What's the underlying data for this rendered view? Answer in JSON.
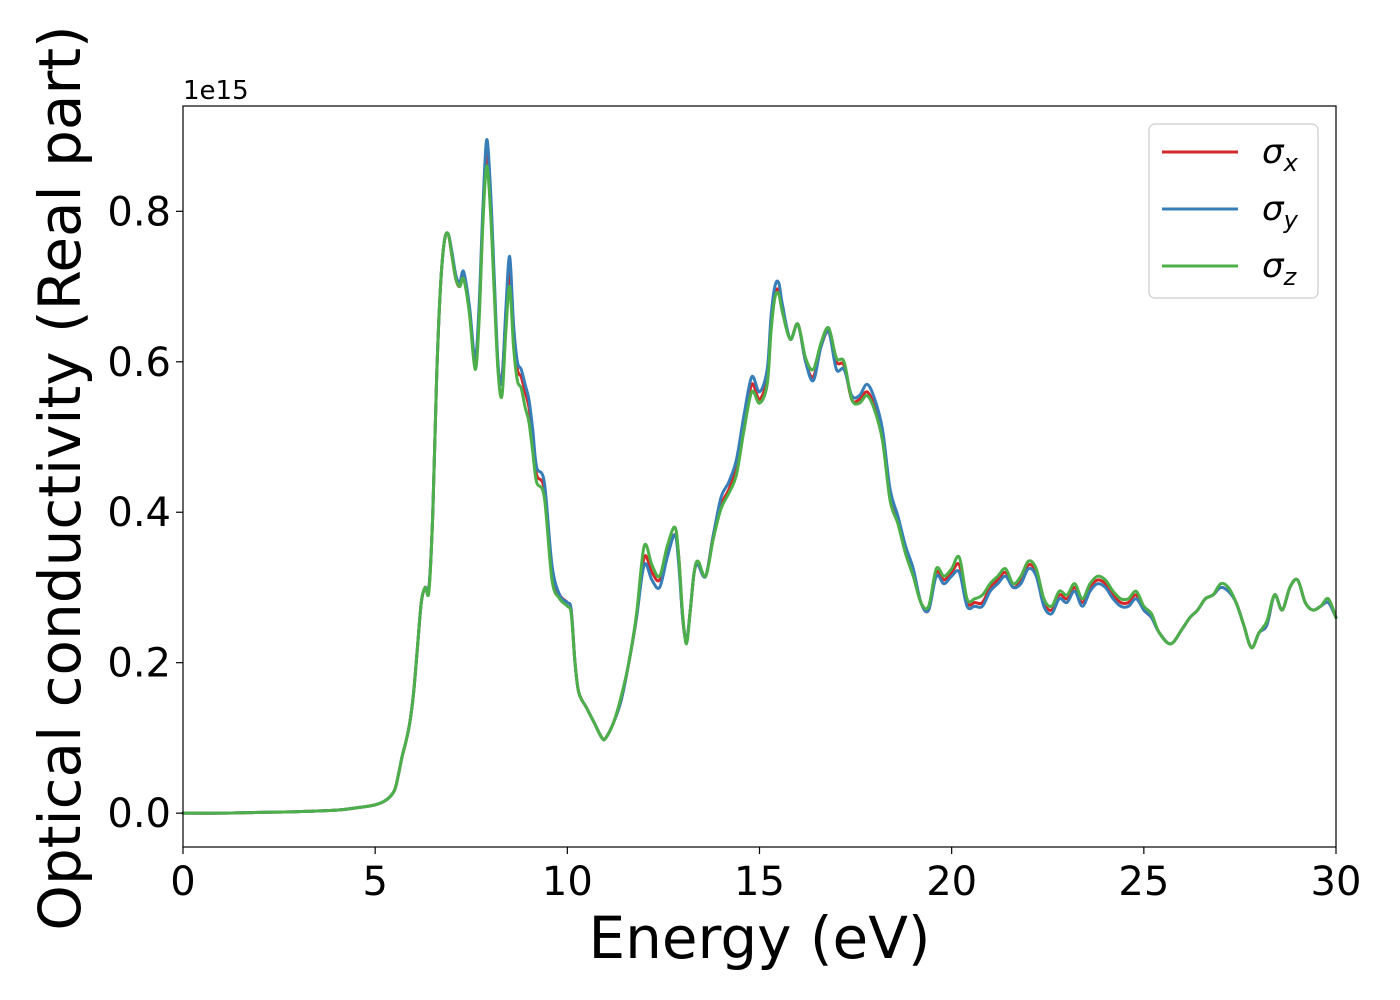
{
  "chart_data": {
    "type": "line",
    "xlabel": "Energy (eV)",
    "ylabel": "Optical conductivity (Real part)",
    "y_offset_label": "1e15",
    "xlim": [
      0,
      30
    ],
    "ylim": [
      -0.045,
      0.94
    ],
    "xticks": [
      0,
      5,
      10,
      15,
      20,
      25,
      30
    ],
    "xtick_labels": [
      "0",
      "5",
      "10",
      "15",
      "20",
      "25",
      "30"
    ],
    "yticks": [
      0.0,
      0.2,
      0.4,
      0.6,
      0.8
    ],
    "ytick_labels": [
      "0.0",
      "0.2",
      "0.4",
      "0.6",
      "0.8"
    ],
    "grid": false,
    "legend_position": "top-right",
    "x": [
      0,
      1,
      2,
      3,
      4,
      4.5,
      5,
      5.3,
      5.5,
      5.6,
      5.7,
      5.8,
      5.9,
      6.0,
      6.1,
      6.2,
      6.3,
      6.4,
      6.5,
      6.6,
      6.7,
      6.8,
      6.9,
      7.0,
      7.1,
      7.2,
      7.3,
      7.45,
      7.6,
      7.7,
      7.8,
      7.9,
      8.0,
      8.1,
      8.2,
      8.3,
      8.4,
      8.5,
      8.6,
      8.7,
      8.8,
      8.9,
      9.0,
      9.1,
      9.2,
      9.4,
      9.6,
      9.8,
      10.0,
      10.1,
      10.2,
      10.3,
      10.5,
      10.7,
      10.9,
      11.0,
      11.2,
      11.4,
      11.6,
      11.8,
      12.0,
      12.2,
      12.4,
      12.6,
      12.8,
      12.9,
      13.0,
      13.1,
      13.2,
      13.3,
      13.4,
      13.6,
      13.8,
      14.0,
      14.2,
      14.4,
      14.6,
      14.8,
      15.0,
      15.2,
      15.3,
      15.4,
      15.5,
      15.6,
      15.8,
      16.0,
      16.2,
      16.4,
      16.6,
      16.8,
      17.0,
      17.2,
      17.4,
      17.6,
      17.8,
      18.0,
      18.2,
      18.4,
      18.6,
      18.8,
      19.0,
      19.2,
      19.4,
      19.6,
      19.8,
      20.0,
      20.2,
      20.4,
      20.6,
      20.8,
      21.0,
      21.2,
      21.4,
      21.6,
      21.8,
      22.0,
      22.2,
      22.4,
      22.6,
      22.8,
      23.0,
      23.2,
      23.4,
      23.6,
      23.8,
      24.0,
      24.2,
      24.4,
      24.6,
      24.8,
      25.0,
      25.2,
      25.4,
      25.7,
      26.0,
      26.2,
      26.4,
      26.6,
      26.8,
      27.0,
      27.2,
      27.4,
      27.6,
      27.8,
      28.0,
      28.2,
      28.4,
      28.6,
      28.8,
      29.0,
      29.2,
      29.4,
      29.6,
      29.8,
      30.0
    ],
    "series": [
      {
        "name": "σx",
        "color": "#d62728",
        "values": [
          0,
          0,
          0.001,
          0.002,
          0.004,
          0.007,
          0.011,
          0.018,
          0.03,
          0.05,
          0.075,
          0.095,
          0.12,
          0.16,
          0.22,
          0.28,
          0.3,
          0.3,
          0.4,
          0.58,
          0.7,
          0.76,
          0.77,
          0.74,
          0.71,
          0.7,
          0.715,
          0.67,
          0.6,
          0.66,
          0.79,
          0.88,
          0.82,
          0.7,
          0.59,
          0.58,
          0.66,
          0.72,
          0.64,
          0.59,
          0.58,
          0.56,
          0.54,
          0.5,
          0.45,
          0.43,
          0.32,
          0.29,
          0.28,
          0.27,
          0.2,
          0.16,
          0.14,
          0.12,
          0.1,
          0.1,
          0.12,
          0.15,
          0.2,
          0.26,
          0.34,
          0.32,
          0.31,
          0.35,
          0.37,
          0.34,
          0.26,
          0.23,
          0.27,
          0.32,
          0.33,
          0.315,
          0.37,
          0.41,
          0.43,
          0.46,
          0.52,
          0.57,
          0.55,
          0.58,
          0.65,
          0.69,
          0.695,
          0.67,
          0.63,
          0.65,
          0.6,
          0.58,
          0.62,
          0.64,
          0.6,
          0.595,
          0.55,
          0.55,
          0.56,
          0.54,
          0.5,
          0.42,
          0.39,
          0.35,
          0.32,
          0.28,
          0.27,
          0.32,
          0.31,
          0.32,
          0.33,
          0.28,
          0.28,
          0.28,
          0.3,
          0.31,
          0.32,
          0.3,
          0.31,
          0.33,
          0.32,
          0.28,
          0.27,
          0.29,
          0.285,
          0.3,
          0.28,
          0.3,
          0.31,
          0.305,
          0.29,
          0.28,
          0.28,
          0.29,
          0.27,
          0.26,
          0.24,
          0.225,
          0.245,
          0.26,
          0.27,
          0.285,
          0.29,
          0.3,
          0.295,
          0.28,
          0.25,
          0.22,
          0.24,
          0.25,
          0.29,
          0.27,
          0.3,
          0.31,
          0.28,
          0.27,
          0.275,
          0.28,
          0.26
        ]
      },
      {
        "name": "σy",
        "color": "#377eb8",
        "values": [
          0,
          0,
          0.001,
          0.002,
          0.004,
          0.007,
          0.011,
          0.018,
          0.03,
          0.05,
          0.075,
          0.095,
          0.12,
          0.16,
          0.22,
          0.28,
          0.3,
          0.3,
          0.4,
          0.58,
          0.7,
          0.76,
          0.77,
          0.745,
          0.715,
          0.705,
          0.72,
          0.675,
          0.605,
          0.67,
          0.8,
          0.895,
          0.83,
          0.71,
          0.595,
          0.575,
          0.67,
          0.74,
          0.65,
          0.6,
          0.59,
          0.57,
          0.55,
          0.51,
          0.46,
          0.44,
          0.33,
          0.29,
          0.28,
          0.27,
          0.2,
          0.16,
          0.14,
          0.12,
          0.1,
          0.1,
          0.12,
          0.15,
          0.2,
          0.26,
          0.33,
          0.31,
          0.3,
          0.34,
          0.37,
          0.33,
          0.26,
          0.23,
          0.27,
          0.32,
          0.33,
          0.315,
          0.37,
          0.42,
          0.44,
          0.47,
          0.53,
          0.58,
          0.56,
          0.59,
          0.66,
          0.7,
          0.705,
          0.675,
          0.63,
          0.65,
          0.6,
          0.575,
          0.62,
          0.64,
          0.59,
          0.59,
          0.555,
          0.555,
          0.57,
          0.55,
          0.51,
          0.43,
          0.395,
          0.355,
          0.325,
          0.28,
          0.27,
          0.315,
          0.305,
          0.315,
          0.32,
          0.275,
          0.275,
          0.275,
          0.295,
          0.305,
          0.315,
          0.3,
          0.305,
          0.325,
          0.315,
          0.275,
          0.265,
          0.285,
          0.28,
          0.295,
          0.275,
          0.295,
          0.305,
          0.3,
          0.285,
          0.275,
          0.275,
          0.285,
          0.27,
          0.26,
          0.24,
          0.225,
          0.245,
          0.26,
          0.27,
          0.285,
          0.29,
          0.3,
          0.295,
          0.28,
          0.25,
          0.22,
          0.24,
          0.25,
          0.29,
          0.27,
          0.3,
          0.31,
          0.28,
          0.27,
          0.275,
          0.28,
          0.26
        ]
      },
      {
        "name": "σz",
        "color": "#4daf4a",
        "values": [
          0,
          0,
          0.001,
          0.002,
          0.004,
          0.007,
          0.011,
          0.018,
          0.03,
          0.05,
          0.075,
          0.095,
          0.12,
          0.16,
          0.22,
          0.28,
          0.3,
          0.295,
          0.4,
          0.58,
          0.7,
          0.76,
          0.77,
          0.74,
          0.71,
          0.7,
          0.71,
          0.665,
          0.59,
          0.65,
          0.78,
          0.86,
          0.8,
          0.69,
          0.585,
          0.555,
          0.64,
          0.7,
          0.62,
          0.575,
          0.565,
          0.54,
          0.52,
          0.48,
          0.44,
          0.42,
          0.31,
          0.285,
          0.275,
          0.265,
          0.2,
          0.16,
          0.14,
          0.12,
          0.1,
          0.1,
          0.12,
          0.155,
          0.2,
          0.265,
          0.355,
          0.33,
          0.315,
          0.355,
          0.38,
          0.34,
          0.265,
          0.225,
          0.27,
          0.32,
          0.335,
          0.315,
          0.365,
          0.405,
          0.425,
          0.45,
          0.51,
          0.56,
          0.545,
          0.57,
          0.64,
          0.685,
          0.69,
          0.665,
          0.63,
          0.65,
          0.605,
          0.59,
          0.625,
          0.645,
          0.605,
          0.6,
          0.55,
          0.545,
          0.555,
          0.535,
          0.495,
          0.415,
          0.385,
          0.345,
          0.315,
          0.28,
          0.275,
          0.325,
          0.315,
          0.325,
          0.34,
          0.285,
          0.285,
          0.29,
          0.305,
          0.315,
          0.325,
          0.305,
          0.315,
          0.335,
          0.325,
          0.285,
          0.275,
          0.295,
          0.29,
          0.305,
          0.285,
          0.305,
          0.315,
          0.31,
          0.295,
          0.285,
          0.285,
          0.295,
          0.275,
          0.265,
          0.24,
          0.225,
          0.245,
          0.26,
          0.27,
          0.285,
          0.29,
          0.305,
          0.3,
          0.28,
          0.25,
          0.22,
          0.24,
          0.255,
          0.29,
          0.27,
          0.3,
          0.31,
          0.28,
          0.27,
          0.275,
          0.285,
          0.26
        ]
      }
    ]
  }
}
